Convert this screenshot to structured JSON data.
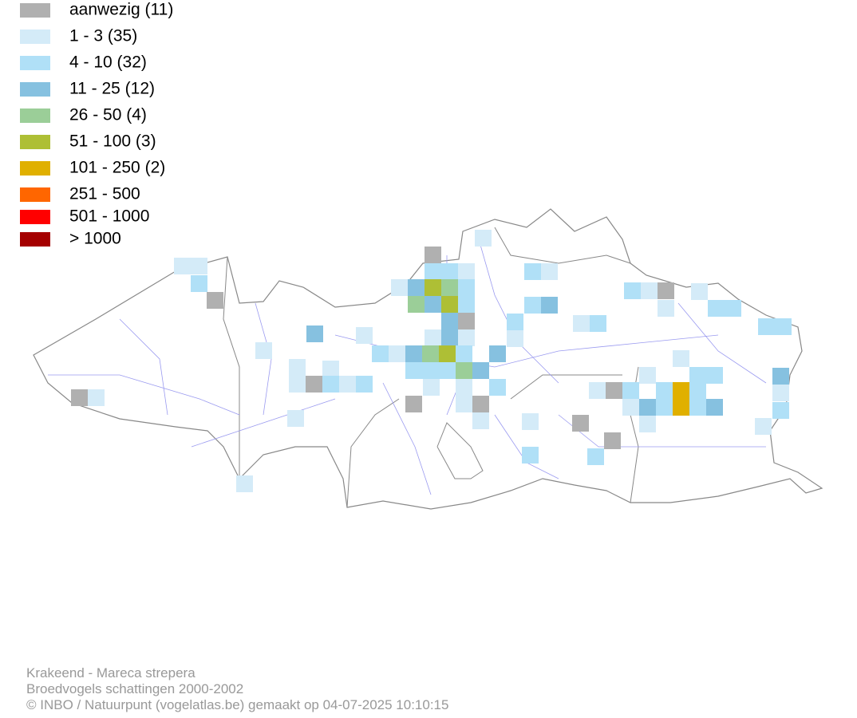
{
  "legend": [
    {
      "label": "aanwezig (11)",
      "color": "#b0b0b0"
    },
    {
      "label": "1 - 3 (35)",
      "color": "#d4ebf8"
    },
    {
      "label": "4 - 10 (32)",
      "color": "#b0e0f7"
    },
    {
      "label": "11 - 25 (12)",
      "color": "#86c1e0"
    },
    {
      "label": "26 - 50 (4)",
      "color": "#9bce98"
    },
    {
      "label": "51 - 100 (3)",
      "color": "#aebf35"
    },
    {
      "label": "101 - 250 (2)",
      "color": "#e0b000"
    },
    {
      "label": "251 - 500",
      "color": "#ff6600"
    },
    {
      "label": "501 - 1000",
      "color": "#ff0000"
    },
    {
      "label": "> 1000",
      "color": "#a50000"
    }
  ],
  "footer": {
    "lines": [
      "Krakeend - Mareca strepera",
      "Broedvogels schattingen 2000-2002",
      "© INBO / Natuurpunt (vogelatlas.be) gemaakt op 04-07-2025 10:10:15"
    ]
  }
}
